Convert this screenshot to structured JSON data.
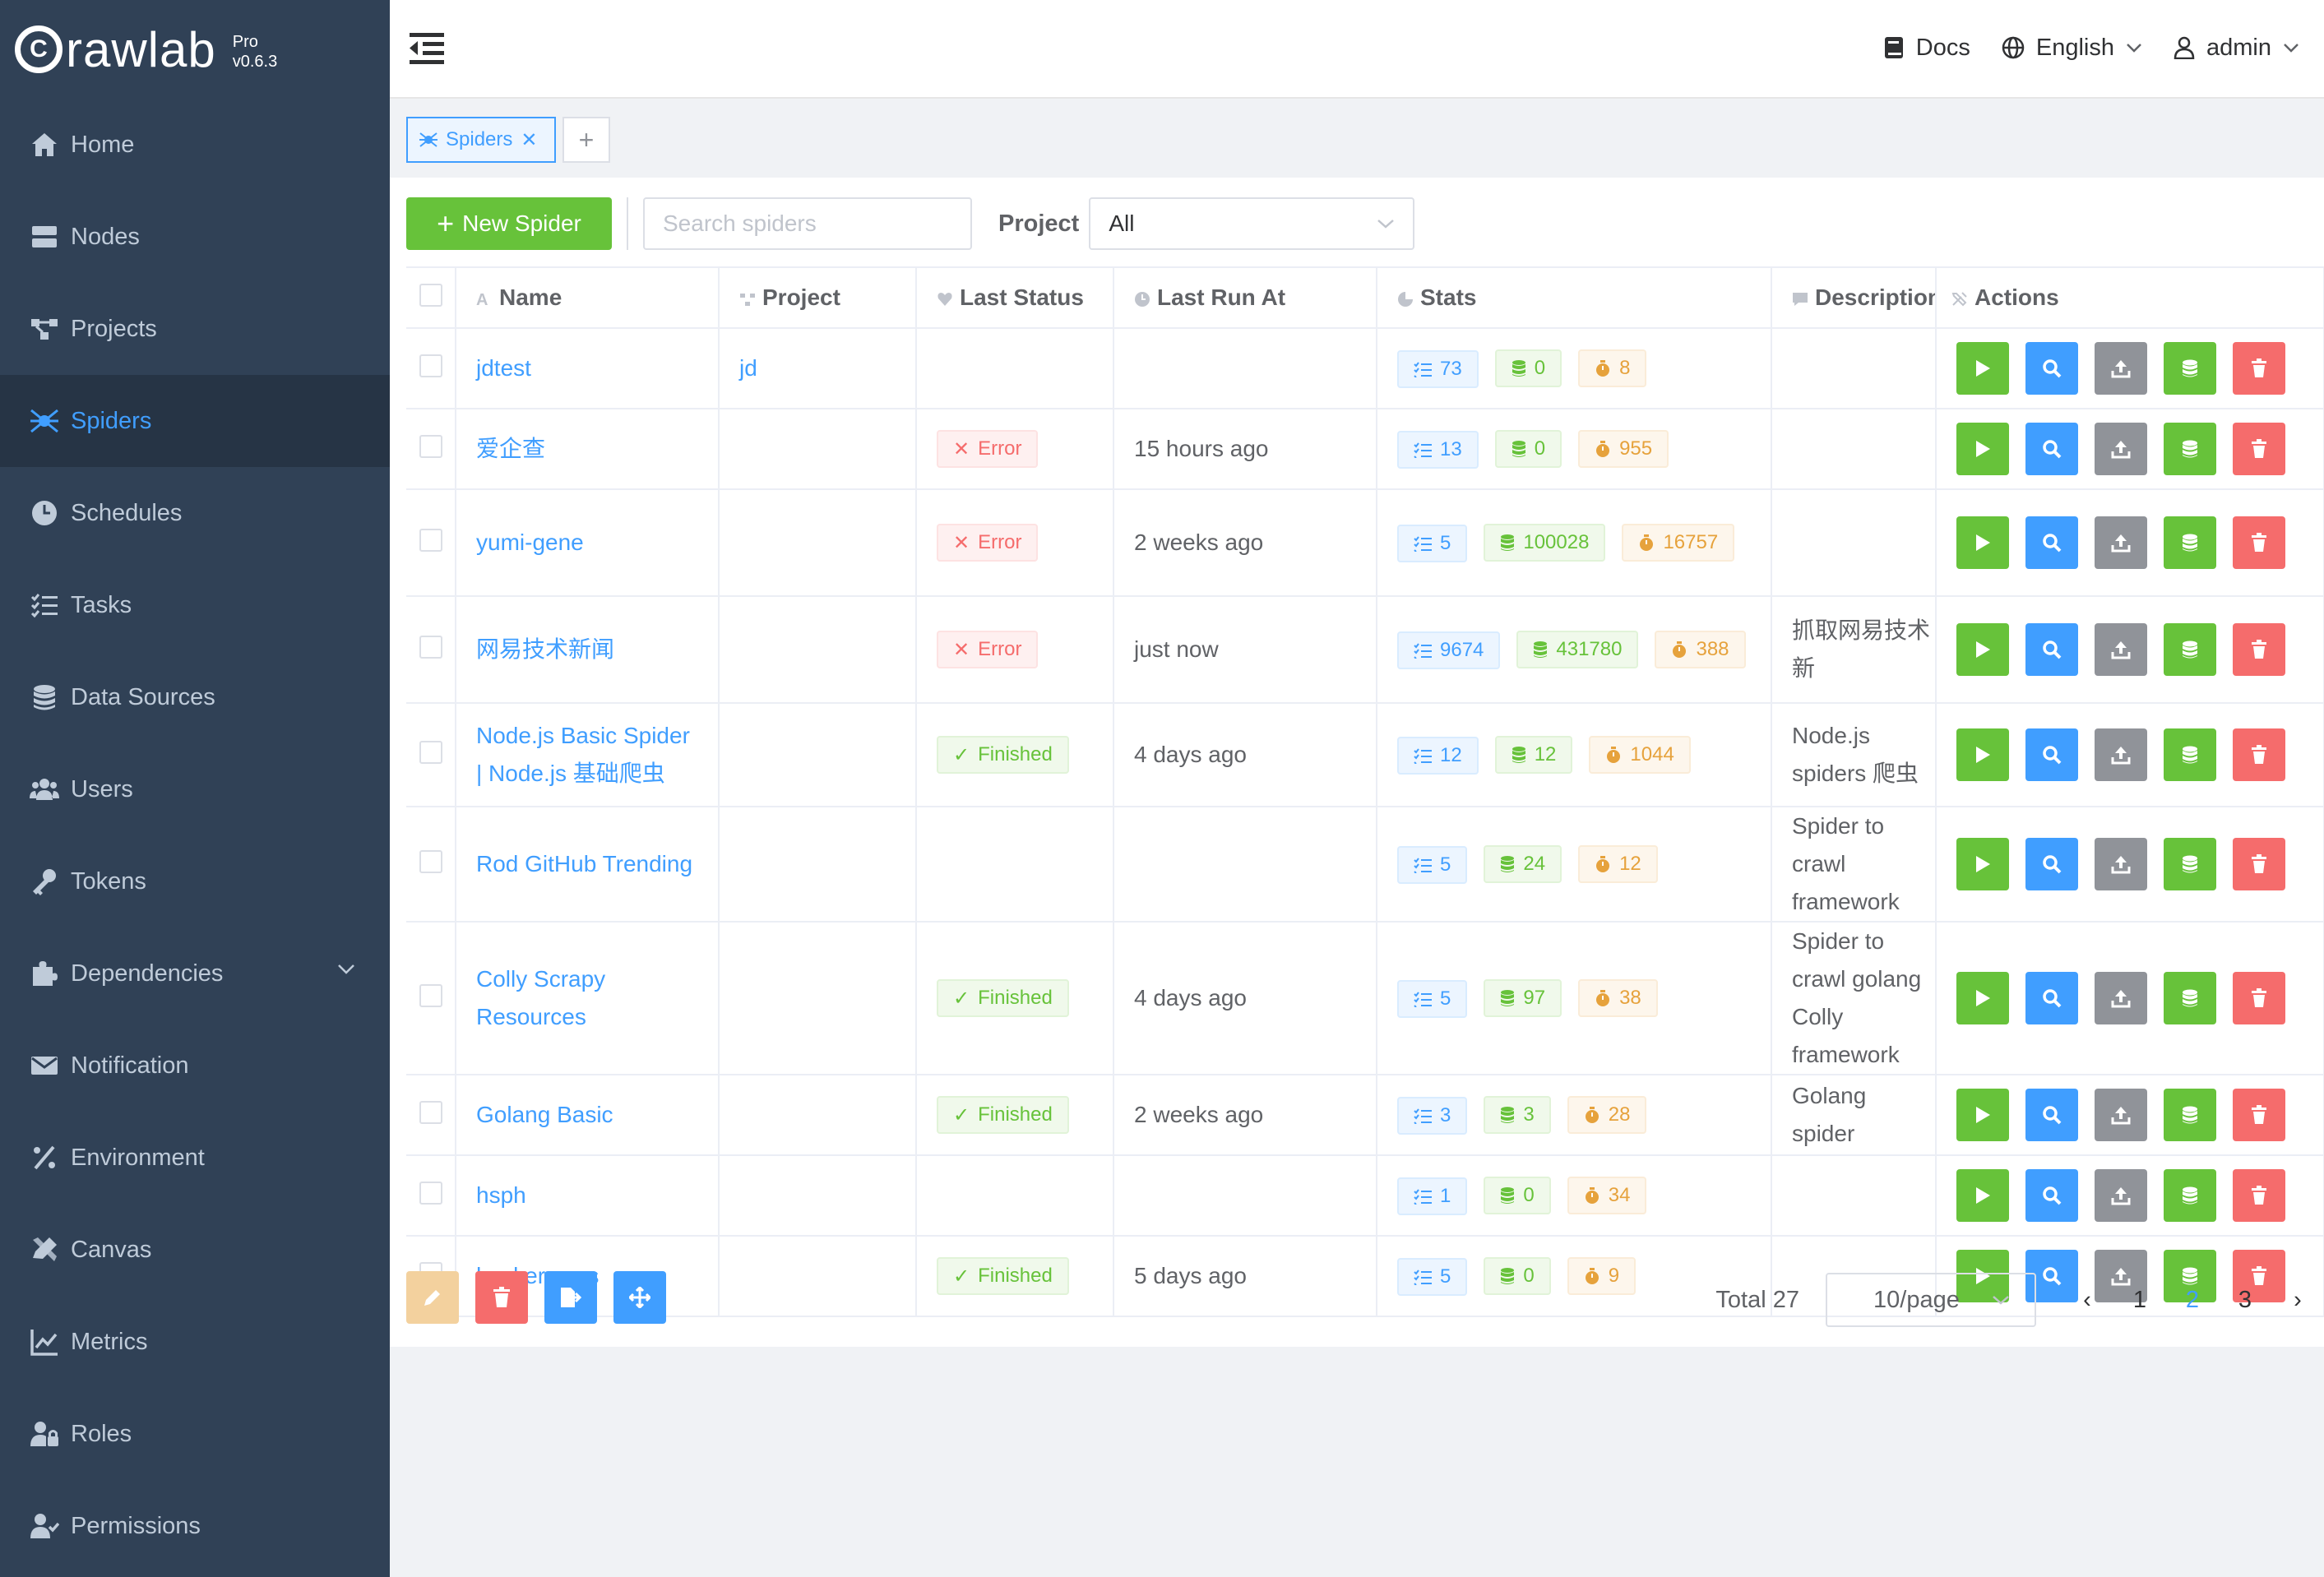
{
  "app": {
    "logo_text": "rawlab",
    "logo_letter": "C",
    "edition": "Pro",
    "version": "v0.6.3"
  },
  "sidebar": {
    "items": [
      {
        "label": "Home",
        "icon": "home-icon"
      },
      {
        "label": "Nodes",
        "icon": "server-icon"
      },
      {
        "label": "Projects",
        "icon": "project-diagram-icon"
      },
      {
        "label": "Spiders",
        "icon": "spider-icon",
        "active": true
      },
      {
        "label": "Schedules",
        "icon": "clock-icon"
      },
      {
        "label": "Tasks",
        "icon": "tasks-icon"
      },
      {
        "label": "Data Sources",
        "icon": "database-icon"
      },
      {
        "label": "Users",
        "icon": "users-icon"
      },
      {
        "label": "Tokens",
        "icon": "key-icon"
      },
      {
        "label": "Dependencies",
        "icon": "puzzle-icon",
        "expandable": true
      },
      {
        "label": "Notification",
        "icon": "envelope-icon"
      },
      {
        "label": "Environment",
        "icon": "percent-icon"
      },
      {
        "label": "Canvas",
        "icon": "pencil-ruler-icon"
      },
      {
        "label": "Metrics",
        "icon": "chart-line-icon"
      },
      {
        "label": "Roles",
        "icon": "user-lock-icon"
      },
      {
        "label": "Permissions",
        "icon": "user-check-icon"
      }
    ]
  },
  "header": {
    "docs": "Docs",
    "language": "English",
    "user": "admin"
  },
  "tabs": [
    {
      "label": "Spiders",
      "add": "+"
    }
  ],
  "toolbar": {
    "new_spider": "New Spider",
    "search_placeholder": "Search spiders",
    "project_label": "Project",
    "project_value": "All"
  },
  "table": {
    "columns": {
      "name": "Name",
      "project": "Project",
      "last_status": "Last Status",
      "last_run_at": "Last Run At",
      "stats": "Stats",
      "description": "Description",
      "actions": "Actions"
    },
    "rows": [
      {
        "name": "jdtest",
        "project": "jd",
        "status": "",
        "last_run": "",
        "tasks": "73",
        "results": "0",
        "duration": "8",
        "desc": ""
      },
      {
        "name": "爱企查",
        "project": "",
        "status": "Error",
        "last_run": "15 hours ago",
        "tasks": "13",
        "results": "0",
        "duration": "955",
        "desc": ""
      },
      {
        "name": "yumi-gene",
        "project": "",
        "status": "Error",
        "last_run": "2 weeks ago",
        "tasks": "5",
        "results": "100028",
        "duration": "16757",
        "desc": ""
      },
      {
        "name": "网易技术新闻",
        "project": "",
        "status": "Error",
        "last_run": "just now",
        "tasks": "9674",
        "results": "431780",
        "duration": "388",
        "desc": "抓取网易技术新"
      },
      {
        "name": "Node.js Basic Spider | Node.js 基础爬虫",
        "project": "",
        "status": "Finished",
        "last_run": "4 days ago",
        "tasks": "12",
        "results": "12",
        "duration": "1044",
        "desc": "Node.js spiders 爬虫"
      },
      {
        "name": "Rod GitHub Trending",
        "project": "",
        "status": "",
        "last_run": "",
        "tasks": "5",
        "results": "24",
        "duration": "12",
        "desc": "Spider to crawl framework"
      },
      {
        "name": "Colly Scrapy Resources",
        "project": "",
        "status": "Finished",
        "last_run": "4 days ago",
        "tasks": "5",
        "results": "97",
        "duration": "38",
        "desc": "Spider to crawl golang Colly framework"
      },
      {
        "name": "Golang Basic",
        "project": "",
        "status": "Finished",
        "last_run": "2 weeks ago",
        "tasks": "3",
        "results": "3",
        "duration": "28",
        "desc": "Golang spider"
      },
      {
        "name": "hsph",
        "project": "",
        "status": "",
        "last_run": "",
        "tasks": "1",
        "results": "0",
        "duration": "34",
        "desc": ""
      },
      {
        "name": "hackernews",
        "project": "",
        "status": "Finished",
        "last_run": "5 days ago",
        "tasks": "5",
        "results": "0",
        "duration": "9",
        "desc": ""
      }
    ]
  },
  "pagination": {
    "total": "Total 27",
    "page_size": "10/page",
    "pages": [
      "1",
      "2",
      "3"
    ],
    "current": "2"
  },
  "colors": {
    "sidebar_bg": "#304156",
    "primary": "#409eff",
    "success": "#67c23a",
    "danger": "#f56c6c",
    "warning": "#e6a23c",
    "info": "#909399"
  }
}
